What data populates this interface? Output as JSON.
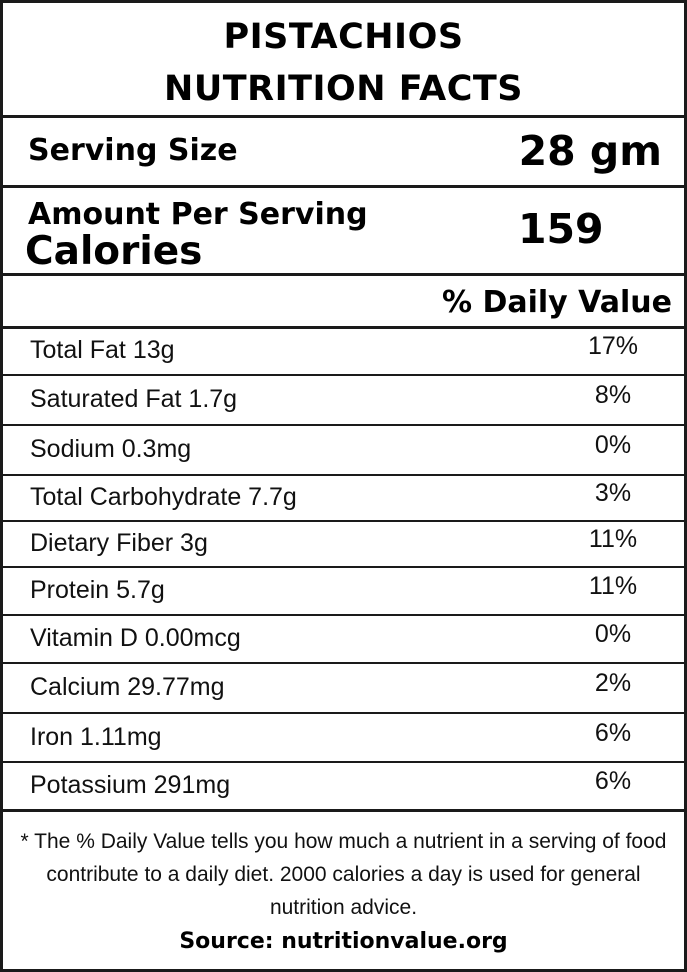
{
  "header": {
    "title_line1": "PISTACHIOS",
    "title_line2": "NUTRITION FACTS"
  },
  "serving": {
    "label": "Serving Size",
    "value": "28 gm"
  },
  "calories": {
    "amount_label": "Amount Per Serving",
    "label": "Calories",
    "value": "159"
  },
  "daily_value_header": "% Daily Value",
  "nutrients": [
    {
      "name": "Total Fat 13g",
      "dv": "17%"
    },
    {
      "name": "Saturated Fat 1.7g",
      "dv": "8%"
    },
    {
      "name": "Sodium 0.3mg",
      "dv": "0%"
    },
    {
      "name": "Total Carbohydrate 7.7g",
      "dv": "3%"
    },
    {
      "name": "Dietary Fiber 3g",
      "dv": "11%"
    },
    {
      "name": "Protein 5.7g",
      "dv": "11%"
    },
    {
      "name": "Vitamin D 0.00mcg",
      "dv": "0%"
    },
    {
      "name": "Calcium 29.77mg",
      "dv": "2%"
    },
    {
      "name": "Iron 1.11mg",
      "dv": "6%"
    },
    {
      "name": "Potassium 291mg",
      "dv": "6%"
    }
  ],
  "footnote": "* The % Daily Value tells you how much a nutrient in a serving of food contribute to a daily diet. 2000 calories a day is used for general nutrition advice.",
  "source": "Source: nutritionvalue.org"
}
